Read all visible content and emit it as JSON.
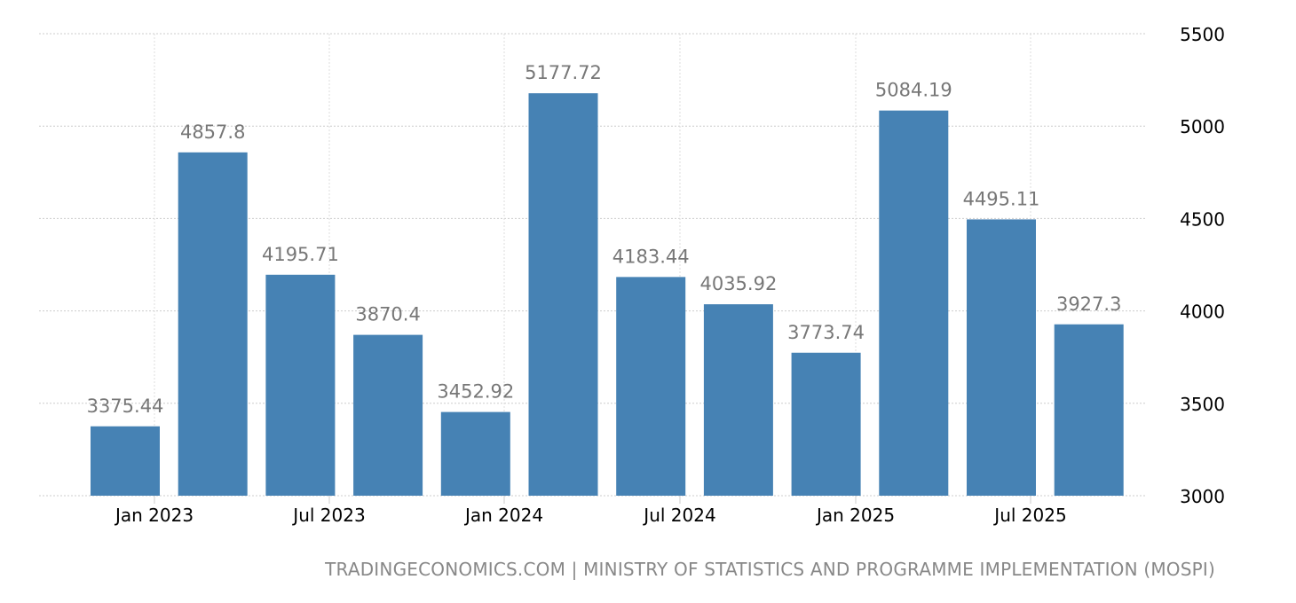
{
  "chart_data": {
    "type": "bar",
    "title": "",
    "xlabel": "",
    "ylabel": "",
    "ylim": [
      3000,
      5500
    ],
    "y_ticks": [
      "3000",
      "3500",
      "4000",
      "4500",
      "5000",
      "5500"
    ],
    "y_axis_position": "right",
    "x_ticks": [
      "Jan 2023",
      "Jul 2023",
      "Jan 2024",
      "Jul 2024",
      "Jan 2025",
      "Jul 2025"
    ],
    "values": [
      3375.44,
      4857.8,
      4195.71,
      3870.4,
      3452.92,
      5177.72,
      4183.44,
      4035.92,
      3773.74,
      5084.19,
      4495.11,
      3927.3
    ],
    "data_labels": [
      "3375.44",
      "4857.8",
      "4195.71",
      "3870.4",
      "3452.92",
      "5177.72",
      "4183.44",
      "4035.92",
      "3773.74",
      "5084.19",
      "4495.11",
      "3927.3"
    ],
    "grid": true,
    "bar_color": "#4682b4",
    "label_color": "#777777"
  },
  "source": "TRADINGECONOMICS.COM | MINISTRY OF STATISTICS AND PROGRAMME IMPLEMENTATION (MOSPI)"
}
